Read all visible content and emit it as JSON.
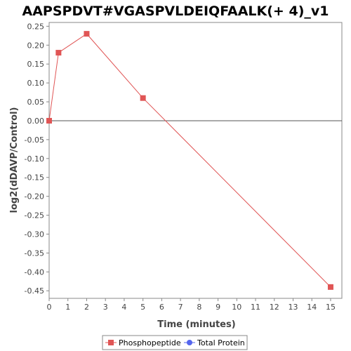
{
  "chart_data": {
    "type": "line",
    "title": "AAPSPDVT#VGASPVLDEIQFAALK(+ 4)_v1",
    "xlabel": "Time (minutes)",
    "ylabel": "log2(dDAVP/Control)",
    "xlim": [
      0,
      15.6
    ],
    "ylim": [
      -0.47,
      0.26
    ],
    "x_ticks": [
      0,
      1,
      2,
      3,
      4,
      5,
      6,
      7,
      8,
      9,
      10,
      11,
      12,
      13,
      14,
      15
    ],
    "y_ticks": [
      0.25,
      0.2,
      0.15,
      0.1,
      0.05,
      0.0,
      -0.05,
      -0.1,
      -0.15,
      -0.2,
      -0.25,
      -0.3,
      -0.35,
      -0.4,
      -0.45
    ],
    "y_tick_labels": [
      "0.25",
      "0.20",
      "0.15",
      "0.10",
      "0.05",
      "0.00",
      "-0.05",
      "-0.10",
      "-0.15",
      "-0.20",
      "-0.25",
      "-0.30",
      "-0.35",
      "-0.40",
      "-0.45"
    ],
    "zero_line": true,
    "grid": false,
    "legend_position": "bottom-center",
    "series": [
      {
        "name": "Phosphopeptide",
        "color": "#e05555",
        "marker": "square",
        "x": [
          0,
          0.5,
          2,
          5,
          15
        ],
        "y": [
          0.0,
          0.18,
          0.23,
          0.06,
          -0.44
        ]
      },
      {
        "name": "Total Protein",
        "color": "#5566ee",
        "marker": "circle",
        "x": [],
        "y": []
      }
    ]
  }
}
